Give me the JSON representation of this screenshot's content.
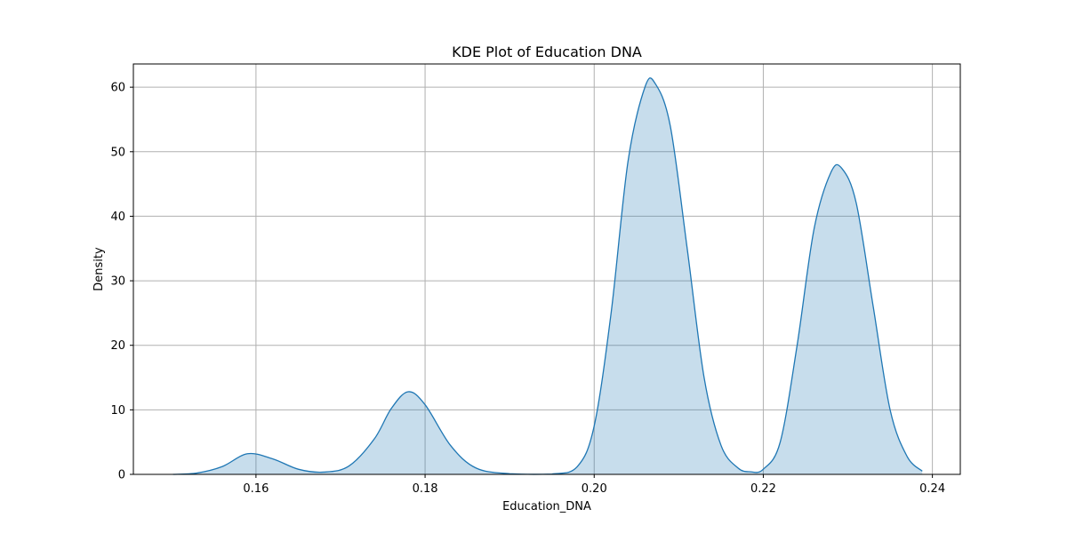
{
  "chart_data": {
    "type": "area",
    "title": "KDE Plot of Education DNA",
    "xlabel": "Education_DNA",
    "ylabel": "Density",
    "xlim": [
      0.1455,
      0.2433
    ],
    "ylim": [
      0,
      63.6
    ],
    "x_ticks": [
      0.16,
      0.18,
      0.2,
      0.22,
      0.24
    ],
    "x_tick_labels": [
      "0.16",
      "0.18",
      "0.20",
      "0.22",
      "0.24"
    ],
    "y_ticks": [
      0,
      10,
      20,
      30,
      40,
      50,
      60
    ],
    "y_tick_labels": [
      "0",
      "10",
      "20",
      "30",
      "40",
      "50",
      "60"
    ],
    "grid": true,
    "series": [
      {
        "color": "#1f77b4",
        "fill": "#1f77b4",
        "fill_opacity": 0.25,
        "x_range": [
          0.1502,
          0.2388
        ],
        "points": [
          {
            "x": 0.1502,
            "y": 0.0
          },
          {
            "x": 0.153,
            "y": 0.2
          },
          {
            "x": 0.156,
            "y": 1.2
          },
          {
            "x": 0.159,
            "y": 3.2
          },
          {
            "x": 0.162,
            "y": 2.4
          },
          {
            "x": 0.165,
            "y": 0.8
          },
          {
            "x": 0.168,
            "y": 0.35
          },
          {
            "x": 0.171,
            "y": 1.3
          },
          {
            "x": 0.174,
            "y": 5.5
          },
          {
            "x": 0.176,
            "y": 10.2
          },
          {
            "x": 0.178,
            "y": 12.8
          },
          {
            "x": 0.18,
            "y": 10.8
          },
          {
            "x": 0.183,
            "y": 4.5
          },
          {
            "x": 0.186,
            "y": 1.0
          },
          {
            "x": 0.19,
            "y": 0.1
          },
          {
            "x": 0.195,
            "y": 0.05
          },
          {
            "x": 0.198,
            "y": 1.2
          },
          {
            "x": 0.2,
            "y": 7.5
          },
          {
            "x": 0.202,
            "y": 25.0
          },
          {
            "x": 0.204,
            "y": 48.5
          },
          {
            "x": 0.206,
            "y": 60.0
          },
          {
            "x": 0.2072,
            "y": 60.6
          },
          {
            "x": 0.209,
            "y": 54.0
          },
          {
            "x": 0.211,
            "y": 35.0
          },
          {
            "x": 0.213,
            "y": 15.0
          },
          {
            "x": 0.215,
            "y": 4.5
          },
          {
            "x": 0.217,
            "y": 1.0
          },
          {
            "x": 0.2185,
            "y": 0.4
          },
          {
            "x": 0.22,
            "y": 0.8
          },
          {
            "x": 0.222,
            "y": 5.0
          },
          {
            "x": 0.224,
            "y": 20.0
          },
          {
            "x": 0.226,
            "y": 38.0
          },
          {
            "x": 0.228,
            "y": 46.8
          },
          {
            "x": 0.2293,
            "y": 47.4
          },
          {
            "x": 0.231,
            "y": 42.0
          },
          {
            "x": 0.233,
            "y": 26.0
          },
          {
            "x": 0.235,
            "y": 10.0
          },
          {
            "x": 0.237,
            "y": 2.8
          },
          {
            "x": 0.2388,
            "y": 0.5
          }
        ]
      }
    ]
  }
}
